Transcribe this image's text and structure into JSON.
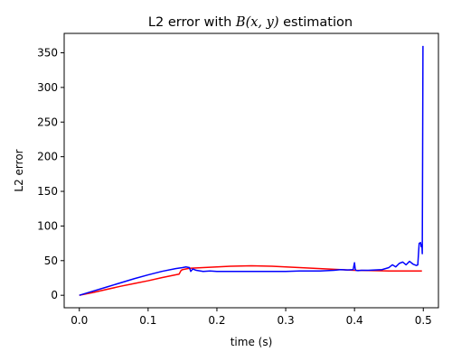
{
  "chart_data": {
    "type": "line",
    "title": {
      "prefix": "L2 error with ",
      "math": "B(x, y)",
      "suffix": " estimation"
    },
    "xlabel": "time (s)",
    "ylabel": "L2 error",
    "xlim": [
      -0.022,
      0.522
    ],
    "ylim": [
      -18,
      378
    ],
    "xticks": [
      0.0,
      0.1,
      0.2,
      0.3,
      0.4,
      0.5
    ],
    "xtick_labels": [
      "0.0",
      "0.1",
      "0.2",
      "0.3",
      "0.4",
      "0.5"
    ],
    "yticks": [
      0,
      50,
      100,
      150,
      200,
      250,
      300,
      350
    ],
    "ytick_labels": [
      "0",
      "50",
      "100",
      "150",
      "200",
      "250",
      "300",
      "350"
    ],
    "grid": false,
    "legend": "none",
    "series": [
      {
        "color": "#ff0000",
        "x": [
          0.0,
          0.02,
          0.04,
          0.06,
          0.08,
          0.1,
          0.12,
          0.14,
          0.145,
          0.148,
          0.15,
          0.16,
          0.17,
          0.18,
          0.19,
          0.2,
          0.22,
          0.25,
          0.28,
          0.3,
          0.32,
          0.35,
          0.38,
          0.4,
          0.43,
          0.45,
          0.47,
          0.48,
          0.49,
          0.495,
          0.497,
          0.498
        ],
        "y": [
          0,
          4,
          8.5,
          13,
          17,
          21,
          25.5,
          29.5,
          30.5,
          36,
          37,
          39,
          39.5,
          40,
          40.5,
          41,
          42,
          42.5,
          42,
          41,
          40,
          38.5,
          37,
          36,
          35.5,
          35,
          35,
          35,
          35,
          35,
          35,
          35
        ]
      },
      {
        "color": "#0000ff",
        "x": [
          0.0,
          0.02,
          0.04,
          0.06,
          0.08,
          0.1,
          0.12,
          0.14,
          0.15,
          0.155,
          0.16,
          0.162,
          0.165,
          0.17,
          0.18,
          0.19,
          0.2,
          0.22,
          0.25,
          0.28,
          0.3,
          0.32,
          0.35,
          0.37,
          0.38,
          0.39,
          0.398,
          0.4,
          0.401,
          0.402,
          0.405,
          0.41,
          0.42,
          0.43,
          0.44,
          0.45,
          0.455,
          0.46,
          0.465,
          0.47,
          0.475,
          0.48,
          0.485,
          0.49,
          0.492,
          0.493,
          0.494,
          0.496,
          0.497,
          0.498,
          0.4985,
          0.499,
          0.4995
        ],
        "y": [
          0,
          6,
          12,
          18,
          24,
          29.5,
          34.5,
          38.5,
          40,
          41,
          40,
          34.5,
          38,
          36,
          34.5,
          35,
          34.5,
          34.5,
          34.5,
          34.5,
          34.5,
          35,
          35,
          36,
          37,
          36.5,
          37,
          47,
          38,
          36,
          35.5,
          36,
          36,
          36.5,
          37,
          40,
          44,
          41,
          46,
          48,
          44,
          49,
          45,
          43,
          44,
          60,
          75,
          76,
          70,
          73,
          60,
          200,
          360
        ]
      }
    ]
  }
}
